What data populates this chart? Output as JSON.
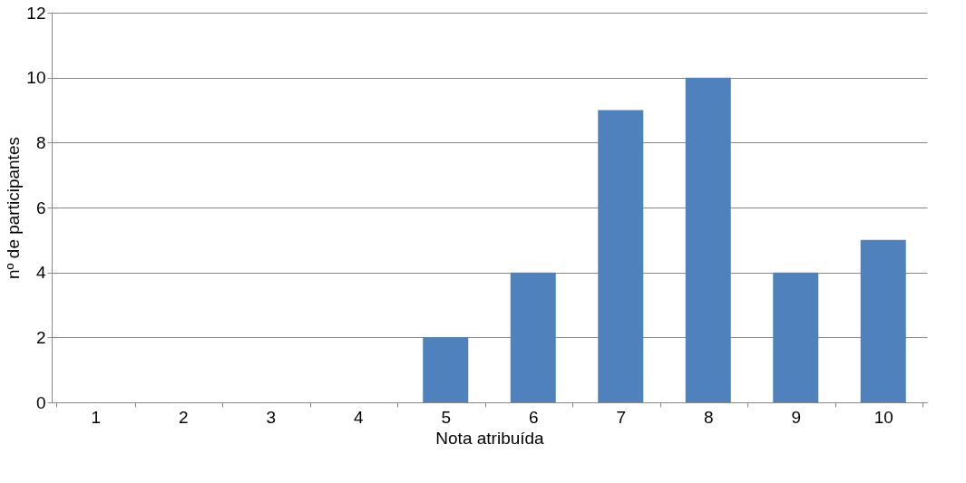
{
  "chart_data": {
    "type": "bar",
    "xlabel": "Nota atribuída",
    "ylabel": "nº de participantes",
    "categories": [
      "1",
      "2",
      "3",
      "4",
      "5",
      "6",
      "7",
      "8",
      "9",
      "10"
    ],
    "values": [
      0,
      0,
      0,
      0,
      2,
      4,
      9,
      10,
      4,
      5
    ],
    "color": "#4f81bd",
    "ylim": [
      0,
      12
    ],
    "yticks": [
      0,
      2,
      4,
      6,
      8,
      10,
      12
    ],
    "grid": "y"
  }
}
